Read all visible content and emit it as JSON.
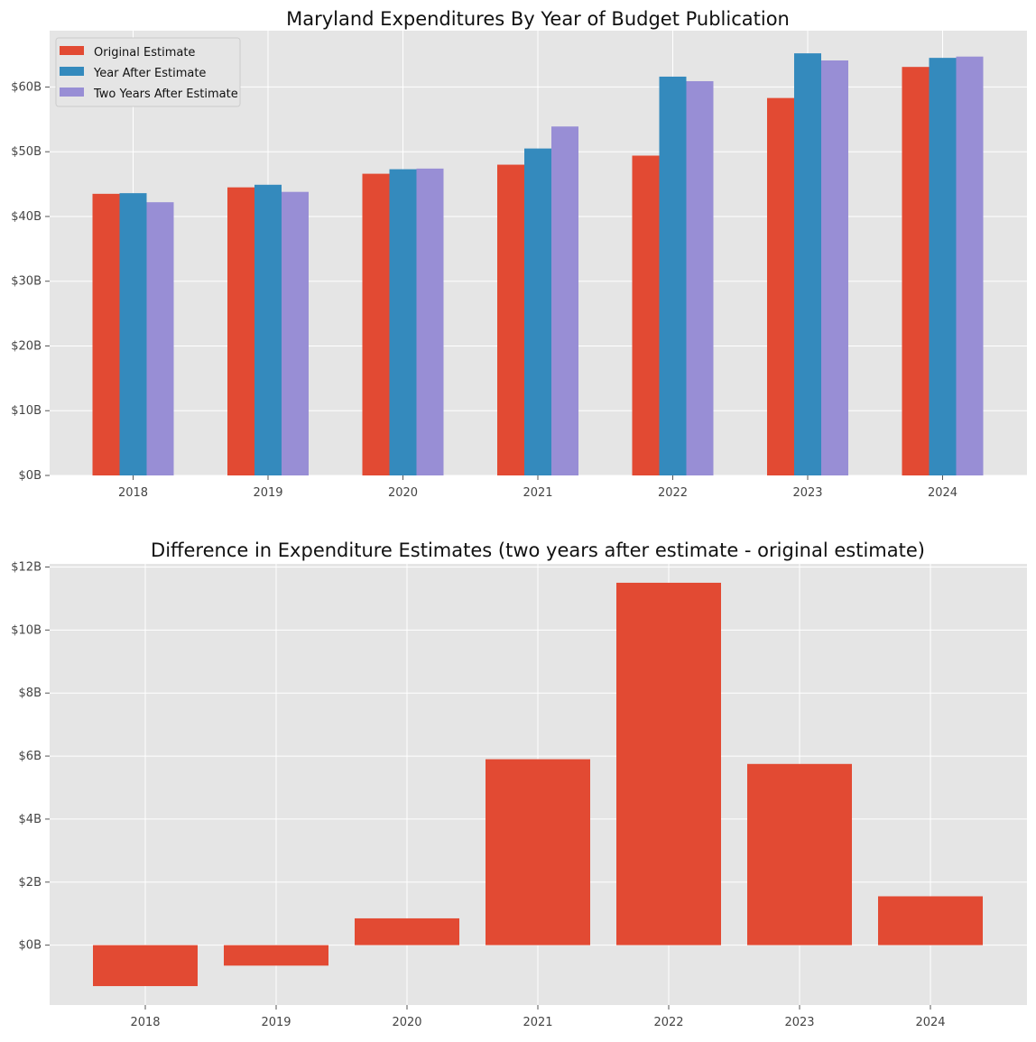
{
  "chart_data": [
    {
      "type": "bar",
      "title": "Maryland Expenditures By Year of Budget Publication",
      "xlabel": "",
      "ylabel": "",
      "categories": [
        "2018",
        "2019",
        "2020",
        "2021",
        "2022",
        "2023",
        "2024"
      ],
      "series": [
        {
          "name": "Original Estimate",
          "color": "#E24A33",
          "values": [
            43.5,
            44.5,
            46.6,
            48.0,
            49.4,
            58.3,
            63.1
          ]
        },
        {
          "name": "Year After Estimate",
          "color": "#348ABD",
          "values": [
            43.6,
            44.9,
            47.3,
            50.5,
            61.6,
            65.2,
            64.5
          ]
        },
        {
          "name": "Two Years After Estimate",
          "color": "#988ED5",
          "values": [
            42.2,
            43.8,
            47.4,
            53.9,
            60.9,
            64.1,
            64.7
          ]
        }
      ],
      "ylim": [
        0,
        68.7
      ],
      "yticks": [
        0,
        10,
        20,
        30,
        40,
        50,
        60
      ],
      "ytick_labels": [
        "$0B",
        "$10B",
        "$20B",
        "$30B",
        "$40B",
        "$50B",
        "$60B"
      ],
      "legend": "top-left",
      "grid": true
    },
    {
      "type": "bar",
      "title": "Difference in Expenditure Estimates (two years after estimate - original estimate)",
      "xlabel": "",
      "ylabel": "",
      "categories": [
        "2018",
        "2019",
        "2020",
        "2021",
        "2022",
        "2023",
        "2024"
      ],
      "values": [
        -1.3,
        -0.65,
        0.85,
        5.9,
        11.5,
        5.75,
        1.55
      ],
      "color": "#E24A33",
      "ylim": [
        -1.9,
        12.1
      ],
      "yticks": [
        0,
        2,
        4,
        6,
        8,
        10,
        12
      ],
      "ytick_labels": [
        "$0B",
        "$2B",
        "$4B",
        "$6B",
        "$8B",
        "$10B",
        "$12B"
      ],
      "grid": true
    }
  ]
}
